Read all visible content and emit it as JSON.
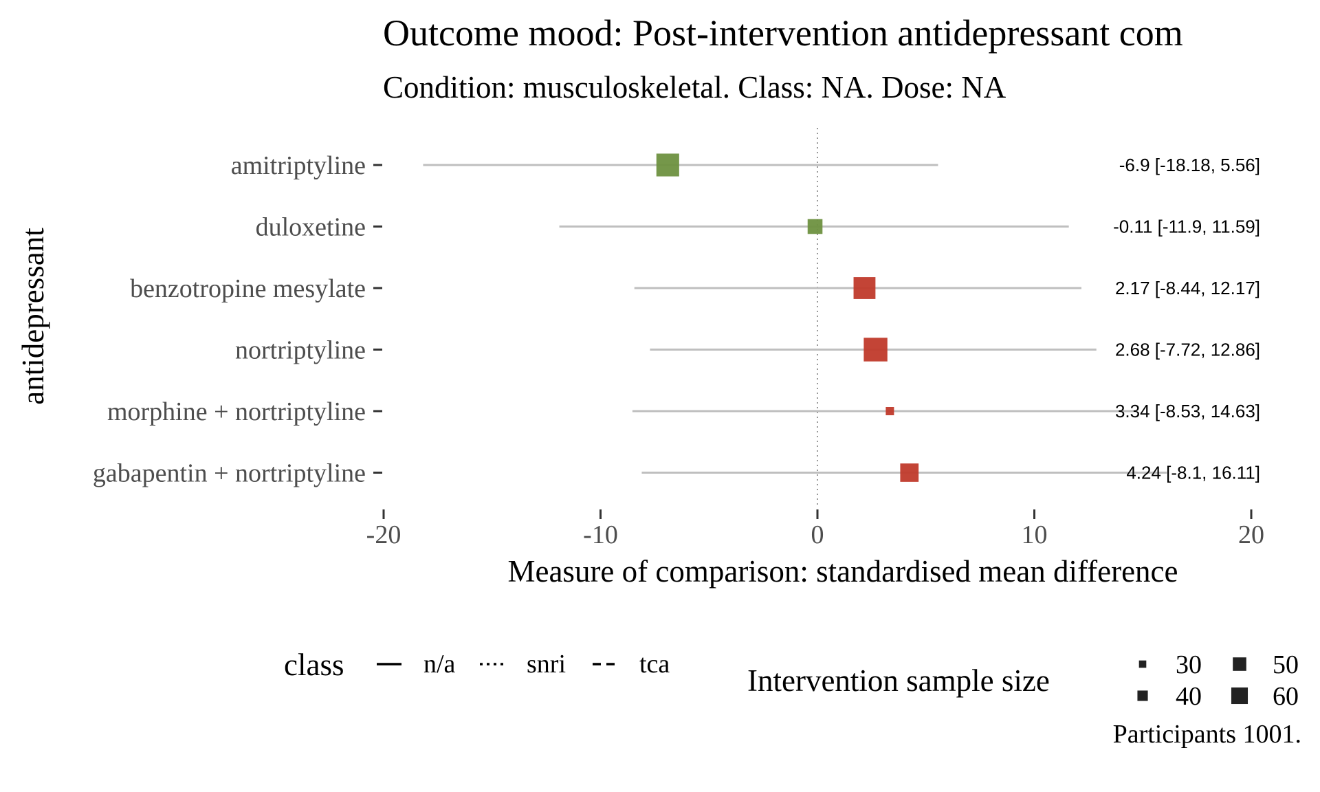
{
  "chart_data": {
    "type": "forest",
    "title": "Outcome mood: Post-intervention antidepressant com",
    "subtitle": "Condition: musculoskeletal. Class: NA. Dose: NA",
    "xlabel": "Measure of comparison: standardised mean difference",
    "ylabel": "antidepressant",
    "xlim": [
      -20,
      20
    ],
    "x_ticks": [
      -20,
      -10,
      0,
      10,
      20
    ],
    "x_tick_labels": [
      "-20",
      "-10",
      "0",
      "10",
      "20"
    ],
    "reference_line": 0,
    "grid": false,
    "rows": [
      {
        "label": "amitriptyline",
        "estimate": -6.9,
        "lower": -18.18,
        "upper": 5.56,
        "class": "tca",
        "sample_size": 58,
        "color": "#6E9140",
        "annotation": "-6.9 [-18.18, 5.56]"
      },
      {
        "label": "duloxetine",
        "estimate": -0.11,
        "lower": -11.9,
        "upper": 11.59,
        "class": "snri",
        "sample_size": 40,
        "color": "#6E9140",
        "annotation": "-0.11 [-11.9, 11.59]"
      },
      {
        "label": "benzotropine mesylate",
        "estimate": 2.17,
        "lower": -8.44,
        "upper": 12.17,
        "class": "n/a",
        "sample_size": 56,
        "color": "#C03A2B",
        "annotation": "2.17 [-8.44, 12.17]"
      },
      {
        "label": "nortriptyline",
        "estimate": 2.68,
        "lower": -7.72,
        "upper": 12.86,
        "class": "tca",
        "sample_size": 60,
        "color": "#C03A2B",
        "annotation": "2.68 [-7.72, 12.86]"
      },
      {
        "label": "morphine + nortriptyline",
        "estimate": 3.34,
        "lower": -8.53,
        "upper": 14.63,
        "class": "tca",
        "sample_size": 25,
        "color": "#C03A2B",
        "annotation": "3.34 [-8.53, 14.63]"
      },
      {
        "label": "gabapentin + nortriptyline",
        "estimate": 4.24,
        "lower": -8.1,
        "upper": 16.11,
        "class": "tca",
        "sample_size": 48,
        "color": "#C03A2B",
        "annotation": "4.24 [-8.1, 16.11]"
      }
    ],
    "legend": {
      "placement": "bottom",
      "class_title": "class",
      "class_entries": [
        {
          "label": "n/a",
          "linetype": "solid"
        },
        {
          "label": "snri",
          "linetype": "dotted"
        },
        {
          "label": "tca",
          "linetype": "dashed"
        }
      ],
      "size_title": "Intervention sample size",
      "size_entries": [
        {
          "label": "30",
          "value": 30
        },
        {
          "label": "50",
          "value": 50
        },
        {
          "label": "40",
          "value": 40
        },
        {
          "label": "60",
          "value": 60
        }
      ]
    },
    "caption": "Participants 1001."
  }
}
